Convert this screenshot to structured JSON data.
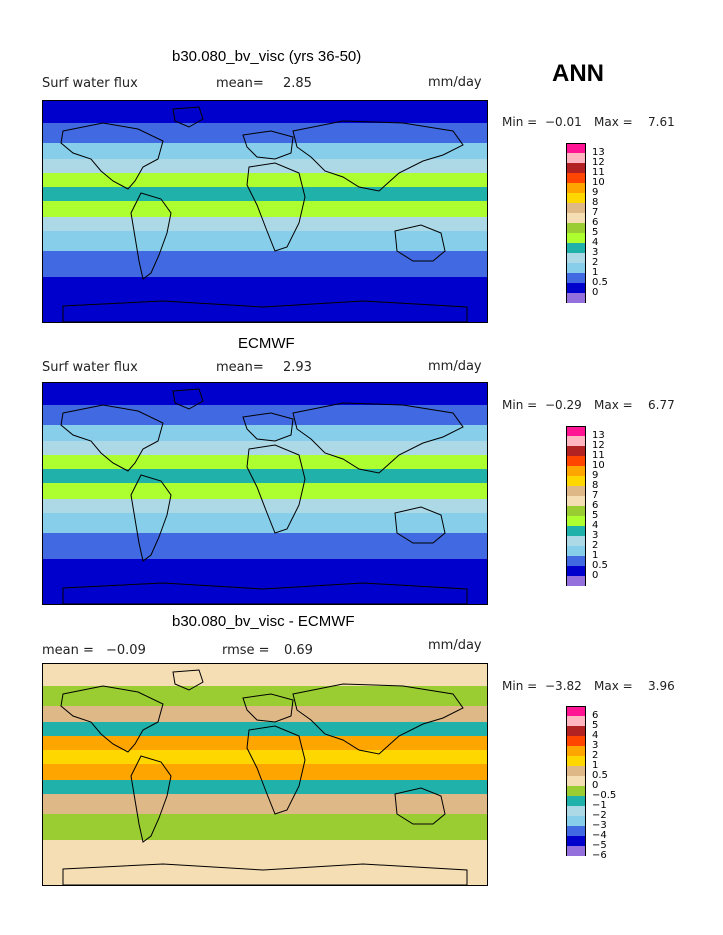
{
  "season": "ANN",
  "panels": [
    {
      "title": "b30.080_bv_visc (yrs 36-50)",
      "left_label": "Surf water flux",
      "stat_label": "mean=",
      "stat_value": "2.85",
      "stat2_label": "",
      "stat2_value": "",
      "units": "mm/day",
      "min_label": "Min =",
      "min_value": "−0.01",
      "max_label": "Max =",
      "max_value": "7.61",
      "levels": [
        "13",
        "12",
        "11",
        "10",
        "9",
        "8",
        "7",
        "6",
        "5",
        "4",
        "3",
        "2",
        "1",
        "0.5",
        "0"
      ],
      "colors": [
        "#ff1493",
        "#ffb6c1",
        "#b22222",
        "#ff4500",
        "#ffa500",
        "#ffd700",
        "#deb887",
        "#f5deb3",
        "#9acd32",
        "#adff2f",
        "#20b2aa",
        "#add8e6",
        "#87ceeb",
        "#4169e1",
        "#0000cd",
        "#9370db"
      ],
      "map_palette": {
        "ocean": "#0000cd",
        "band1": "#4169e1",
        "band2": "#87ceeb",
        "band3": "#add8e6",
        "band4": "#20b2aa",
        "band5": "#adff2f"
      }
    },
    {
      "title": "ECMWF",
      "left_label": "Surf water flux",
      "stat_label": "mean=",
      "stat_value": "2.93",
      "stat2_label": "",
      "stat2_value": "",
      "units": "mm/day",
      "min_label": "Min =",
      "min_value": "−0.29",
      "max_label": "Max =",
      "max_value": "6.77",
      "levels": [
        "13",
        "12",
        "11",
        "10",
        "9",
        "8",
        "7",
        "6",
        "5",
        "4",
        "3",
        "2",
        "1",
        "0.5",
        "0"
      ],
      "colors": [
        "#ff1493",
        "#ffb6c1",
        "#b22222",
        "#ff4500",
        "#ffa500",
        "#ffd700",
        "#deb887",
        "#f5deb3",
        "#9acd32",
        "#adff2f",
        "#20b2aa",
        "#add8e6",
        "#87ceeb",
        "#4169e1",
        "#0000cd",
        "#9370db"
      ],
      "map_palette": {
        "ocean": "#0000cd",
        "band1": "#4169e1",
        "band2": "#87ceeb",
        "band3": "#add8e6",
        "band4": "#20b2aa",
        "band5": "#adff2f"
      }
    },
    {
      "title": "b30.080_bv_visc - ECMWF",
      "left_label": "mean =",
      "stat_label": "",
      "stat_value": "−0.09",
      "stat2_label": "rmse =",
      "stat2_value": "0.69",
      "units": "mm/day",
      "min_label": "Min =",
      "min_value": "−3.82",
      "max_label": "Max =",
      "max_value": "3.96",
      "levels": [
        "6",
        "5",
        "4",
        "3",
        "2",
        "1",
        "0.5",
        "0",
        "−0.5",
        "−1",
        "−2",
        "−3",
        "−4",
        "−5",
        "−6"
      ],
      "colors": [
        "#ff1493",
        "#ffb6c1",
        "#b22222",
        "#ff4500",
        "#ffa500",
        "#ffd700",
        "#deb887",
        "#f5deb3",
        "#9acd32",
        "#20b2aa",
        "#add8e6",
        "#87ceeb",
        "#4169e1",
        "#0000cd",
        "#9370db"
      ],
      "map_palette": {
        "ocean": "#f5deb3",
        "band1": "#9acd32",
        "band2": "#deb887",
        "band3": "#20b2aa",
        "band4": "#ffd700",
        "band5": "#ffa500"
      }
    }
  ]
}
